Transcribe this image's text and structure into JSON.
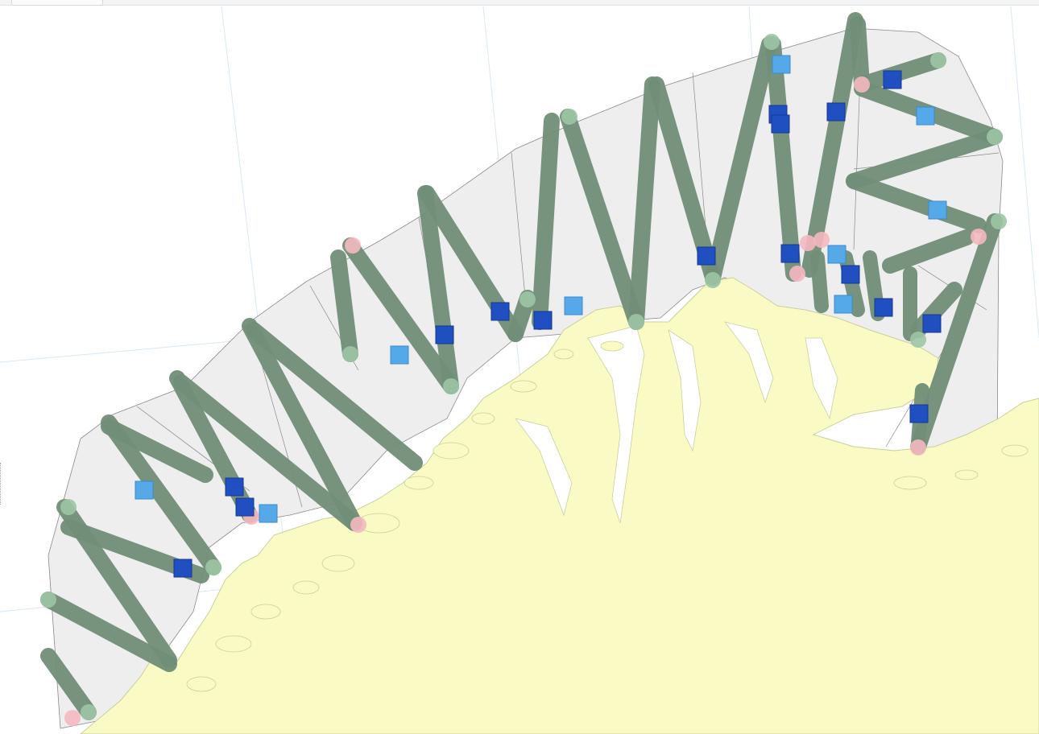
{
  "map": {
    "type": "survey-track-map",
    "colors": {
      "background": "#ffffff",
      "graticule": "#d7e7f5",
      "land": "#fafbc4",
      "land_outline": "#cbcf9d",
      "survey_area": "#eeeeef",
      "survey_area_outline": "#8a8a8a",
      "track": "#718f78",
      "track_endpoint": "#9cc5a4",
      "track_start_alt": "#f4b8c0",
      "marker_dark": "#1f4fc0",
      "marker_light": "#56a9e8"
    },
    "layers": [
      {
        "name": "graticule",
        "icon": "grid-lines-icon"
      },
      {
        "name": "land",
        "icon": "land-polygon-icon"
      },
      {
        "name": "survey-areas",
        "icon": "polygon-icon"
      },
      {
        "name": "survey-tracks",
        "icon": "track-line-icon"
      },
      {
        "name": "track-endpoints",
        "icon": "circle-icon"
      },
      {
        "name": "station-markers",
        "icon": "square-icon"
      }
    ],
    "track_count": 30,
    "station_marker_count": 33
  }
}
